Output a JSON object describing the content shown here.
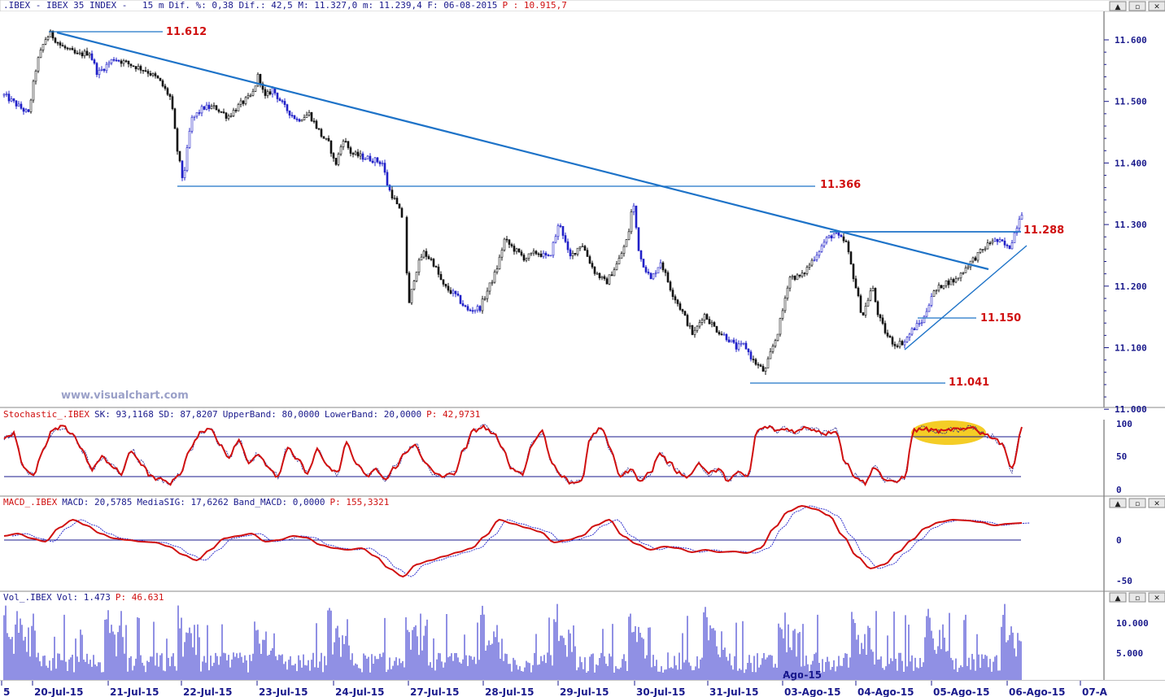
{
  "header": {
    "symbol": ".IBEX - IBEX 35 INDEX - ",
    "interval": "15 m",
    "stats": "Dif. %: 0,38 Dif.: 42,5 M: 11.327,0 m: 11.239,4 F: 06-08-2015",
    "last_label": "P : 10.915,7"
  },
  "window_buttons": [
    "▲",
    "▫",
    "✕"
  ],
  "watermark": "www.visualchart.com",
  "price_axis": {
    "ticks": [
      "11.600",
      "11.500",
      "11.400",
      "11.300",
      "11.200",
      "11.100",
      "11.000"
    ]
  },
  "levels": [
    {
      "label": "11.612"
    },
    {
      "label": "11.366"
    },
    {
      "label": "11.288"
    },
    {
      "label": "11.150"
    },
    {
      "label": "11.041"
    }
  ],
  "stoch": {
    "name": "Stochastic_.IBEX",
    "sk": "SK: 93,1168",
    "sd": "SD: 87,8207",
    "upper": "UpperBand: 80,0000",
    "lower": "LowerBand: 20,0000",
    "p": "P: 42,9731",
    "ticks": [
      "100",
      "50",
      "0"
    ]
  },
  "macd": {
    "name": "MACD_.IBEX",
    "macd": "MACD: 20,5785",
    "sig": "MediaSIG: 17,6262",
    "band": "Band_MACD: 0,0000",
    "p": "P: 155,3321",
    "ticks": [
      "0",
      "-50"
    ]
  },
  "vol": {
    "name": "Vol_.IBEX",
    "vol": "Vol: 1.473",
    "p": "P: 46.631",
    "ticks": [
      "10.000",
      "5.000"
    ],
    "overlay_label": "Ago-15"
  },
  "chart_data": {
    "type": "candlestick",
    "title": "",
    "x_labels": [
      "5",
      "20-Jul-15",
      "21-Jul-15",
      "22-Jul-15",
      "23-Jul-15",
      "24-Jul-15",
      "27-Jul-15",
      "28-Jul-15",
      "29-Jul-15",
      "30-Jul-15",
      "31-Jul-15",
      "03-Ago-15",
      "04-Ago-15",
      "05-Ago-15",
      "06-Ago-15",
      "07-A"
    ],
    "price_series": [
      [
        0,
        11515
      ],
      [
        20,
        11495
      ],
      [
        35,
        11480
      ],
      [
        45,
        11560
      ],
      [
        55,
        11600
      ],
      [
        62,
        11610
      ],
      [
        75,
        11590
      ],
      [
        95,
        11575
      ],
      [
        110,
        11580
      ],
      [
        120,
        11545
      ],
      [
        140,
        11570
      ],
      [
        160,
        11560
      ],
      [
        180,
        11550
      ],
      [
        195,
        11535
      ],
      [
        210,
        11505
      ],
      [
        218,
        11420
      ],
      [
        225,
        11370
      ],
      [
        235,
        11470
      ],
      [
        250,
        11490
      ],
      [
        265,
        11490
      ],
      [
        280,
        11475
      ],
      [
        295,
        11495
      ],
      [
        310,
        11510
      ],
      [
        318,
        11545
      ],
      [
        325,
        11505
      ],
      [
        335,
        11520
      ],
      [
        350,
        11490
      ],
      [
        365,
        11470
      ],
      [
        380,
        11480
      ],
      [
        395,
        11445
      ],
      [
        405,
        11430
      ],
      [
        412,
        11395
      ],
      [
        422,
        11440
      ],
      [
        432,
        11415
      ],
      [
        445,
        11410
      ],
      [
        460,
        11405
      ],
      [
        470,
        11400
      ],
      [
        477,
        11360
      ],
      [
        485,
        11340
      ],
      [
        495,
        11310
      ],
      [
        503,
        11170
      ],
      [
        510,
        11220
      ],
      [
        520,
        11255
      ],
      [
        532,
        11240
      ],
      [
        545,
        11200
      ],
      [
        560,
        11185
      ],
      [
        575,
        11160
      ],
      [
        590,
        11165
      ],
      [
        600,
        11195
      ],
      [
        610,
        11225
      ],
      [
        620,
        11275
      ],
      [
        632,
        11260
      ],
      [
        645,
        11245
      ],
      [
        660,
        11255
      ],
      [
        675,
        11245
      ],
      [
        688,
        11305
      ],
      [
        700,
        11245
      ],
      [
        715,
        11270
      ],
      [
        730,
        11225
      ],
      [
        745,
        11205
      ],
      [
        760,
        11240
      ],
      [
        772,
        11280
      ],
      [
        778,
        11340
      ],
      [
        786,
        11250
      ],
      [
        800,
        11210
      ],
      [
        812,
        11240
      ],
      [
        826,
        11190
      ],
      [
        840,
        11155
      ],
      [
        852,
        11120
      ],
      [
        865,
        11155
      ],
      [
        880,
        11130
      ],
      [
        895,
        11115
      ],
      [
        905,
        11100
      ],
      [
        915,
        11105
      ],
      [
        925,
        11080
      ],
      [
        940,
        11060
      ],
      [
        948,
        11095
      ],
      [
        955,
        11120
      ],
      [
        962,
        11160
      ],
      [
        970,
        11215
      ],
      [
        985,
        11215
      ],
      [
        1000,
        11245
      ],
      [
        1015,
        11275
      ],
      [
        1025,
        11285
      ],
      [
        1040,
        11270
      ],
      [
        1050,
        11210
      ],
      [
        1060,
        11150
      ],
      [
        1072,
        11200
      ],
      [
        1080,
        11150
      ],
      [
        1090,
        11120
      ],
      [
        1100,
        11105
      ],
      [
        1112,
        11110
      ],
      [
        1122,
        11130
      ],
      [
        1135,
        11145
      ],
      [
        1145,
        11185
      ],
      [
        1160,
        11205
      ],
      [
        1175,
        11210
      ],
      [
        1190,
        11235
      ],
      [
        1205,
        11255
      ],
      [
        1220,
        11275
      ],
      [
        1232,
        11270
      ],
      [
        1240,
        11260
      ],
      [
        1248,
        11290
      ],
      [
        1255,
        11320
      ]
    ],
    "stoch_sk": [
      80,
      85,
      35,
      20,
      60,
      90,
      95,
      85,
      60,
      30,
      50,
      35,
      25,
      60,
      40,
      20,
      15,
      10,
      25,
      60,
      85,
      95,
      70,
      50,
      75,
      40,
      55,
      35,
      20,
      65,
      45,
      25,
      60,
      35,
      25,
      70,
      40,
      20,
      30,
      15,
      35,
      55,
      70,
      40,
      25,
      20,
      25,
      60,
      90,
      95,
      85,
      60,
      30,
      25,
      70,
      90,
      40,
      20,
      10,
      15,
      80,
      95,
      60,
      20,
      30,
      15,
      25,
      55,
      40,
      25,
      20,
      40,
      25,
      30,
      15,
      25,
      20,
      90,
      95,
      90,
      92,
      88,
      95,
      90,
      85,
      90,
      40,
      20,
      10,
      35,
      15,
      10,
      20,
      90,
      92,
      90,
      88,
      92,
      90,
      95,
      85,
      80,
      70,
      30,
      95
    ],
    "stoch_bands": {
      "upper": 80,
      "lower": 20
    },
    "macd": [
      5,
      8,
      2,
      -2,
      15,
      25,
      18,
      8,
      2,
      0,
      -2,
      -3,
      -8,
      -18,
      -25,
      -12,
      2,
      5,
      8,
      -2,
      0,
      5,
      3,
      -6,
      -10,
      -12,
      -10,
      -20,
      -35,
      -45,
      -30,
      -25,
      -20,
      -15,
      -10,
      5,
      25,
      20,
      15,
      10,
      -3,
      0,
      5,
      18,
      25,
      5,
      -5,
      -12,
      -8,
      -10,
      -15,
      -12,
      -15,
      -14,
      -16,
      -10,
      15,
      35,
      42,
      38,
      30,
      5,
      -20,
      -35,
      -30,
      -15,
      0,
      15,
      22,
      25,
      24,
      22,
      18,
      20,
      21
    ],
    "macd_range": [
      -60,
      48
    ],
    "volume_note": "bars, many between 2.000 and 13.000",
    "volume_axis_max": 13000
  }
}
